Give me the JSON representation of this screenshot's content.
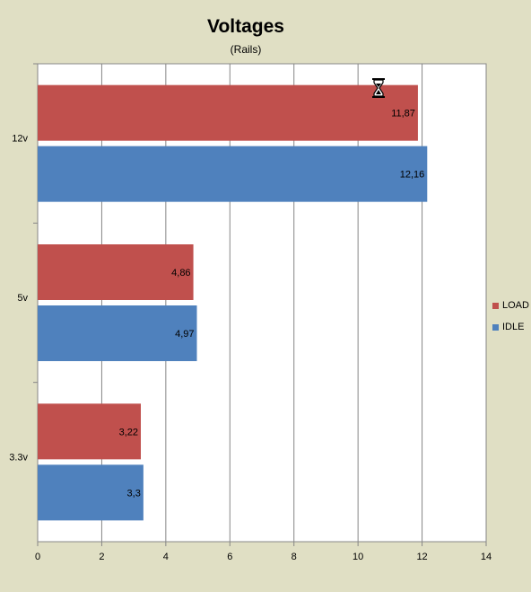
{
  "chart_data": {
    "type": "bar",
    "orientation": "horizontal",
    "title": "Voltages",
    "subtitle": "(Rails)",
    "categories": [
      "12v",
      "5v",
      "3.3v"
    ],
    "series": [
      {
        "name": "LOAD",
        "color": "#c0504d",
        "values": [
          11.87,
          4.86,
          3.22
        ],
        "labels": [
          "11,87",
          "4,86",
          "3,22"
        ]
      },
      {
        "name": "IDLE",
        "color": "#4f81bd",
        "values": [
          12.16,
          4.97,
          3.3
        ],
        "labels": [
          "12,16",
          "4,97",
          "3,3"
        ]
      }
    ],
    "xlim": [
      0,
      14
    ],
    "xticks": [
      "0",
      "2",
      "4",
      "6",
      "8",
      "10",
      "12",
      "14"
    ],
    "grid": true,
    "legend": "right"
  },
  "plot_background": "#ffffff",
  "page_background": "#e0dfc4",
  "cursor_icon": "hourglass-cursor-icon"
}
